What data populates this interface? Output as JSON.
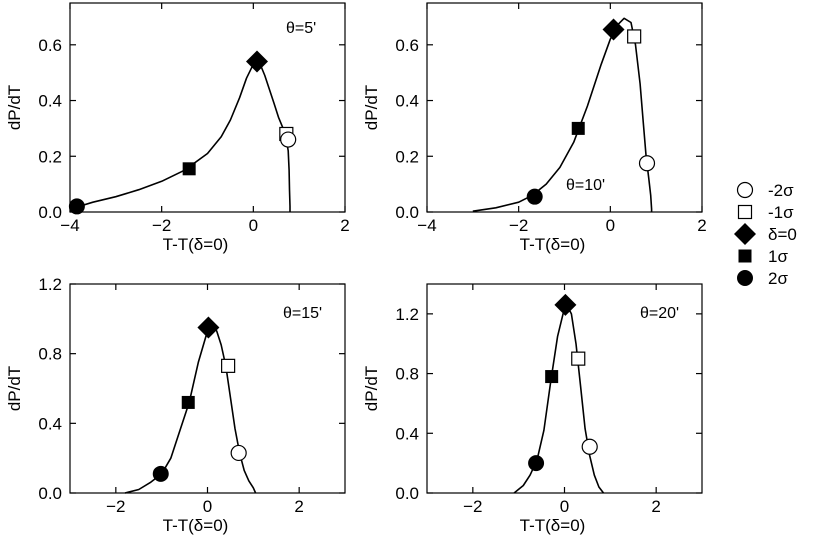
{
  "chart_data": [
    {
      "type": "line",
      "panel_label": "θ=5'",
      "xlabel": "T-T(δ=0)",
      "ylabel": "dP/dT",
      "xlim": [
        -4,
        2
      ],
      "ylim": [
        0,
        0.75
      ],
      "xticks": [
        -4,
        -2,
        0,
        2
      ],
      "yticks": [
        0.0,
        0.2,
        0.4,
        0.6
      ],
      "x_tick_labels": [
        "−4",
        "−2",
        "0",
        "2"
      ],
      "y_tick_labels": [
        "0.0",
        "0.2",
        "0.4",
        "0.6"
      ],
      "curve": {
        "x": [
          -4.0,
          -3.8,
          -3.5,
          -3.0,
          -2.5,
          -2.0,
          -1.5,
          -1.0,
          -0.7,
          -0.5,
          -0.3,
          -0.15,
          0.0,
          0.08,
          0.15,
          0.25,
          0.35,
          0.45,
          0.55,
          0.65,
          0.72,
          0.76,
          0.78,
          0.79,
          0.8,
          0.8
        ],
        "y": [
          0.008,
          0.02,
          0.035,
          0.055,
          0.08,
          0.11,
          0.15,
          0.21,
          0.27,
          0.33,
          0.41,
          0.48,
          0.53,
          0.54,
          0.53,
          0.49,
          0.44,
          0.39,
          0.34,
          0.3,
          0.26,
          0.22,
          0.15,
          0.08,
          0.02,
          0.0
        ]
      },
      "markers": [
        {
          "series": "2σ",
          "x": -3.85,
          "y": 0.02
        },
        {
          "series": "1σ",
          "x": -1.4,
          "y": 0.155
        },
        {
          "series": "δ=0",
          "x": 0.08,
          "y": 0.54
        },
        {
          "series": "-1σ",
          "x": 0.72,
          "y": 0.28
        },
        {
          "series": "-2σ",
          "x": 0.76,
          "y": 0.26
        }
      ]
    },
    {
      "type": "line",
      "panel_label": "θ=10'",
      "xlabel": "T-T(δ=0)",
      "ylabel": "dP/dT",
      "xlim": [
        -4,
        2
      ],
      "ylim": [
        0,
        0.75
      ],
      "xticks": [
        -4,
        -2,
        0,
        2
      ],
      "yticks": [
        0.0,
        0.2,
        0.4,
        0.6
      ],
      "x_tick_labels": [
        "−4",
        "−2",
        "0",
        "2"
      ],
      "y_tick_labels": [
        "0.0",
        "0.2",
        "0.4",
        "0.6"
      ],
      "curve": {
        "x": [
          -3.0,
          -2.5,
          -2.0,
          -1.7,
          -1.4,
          -1.1,
          -0.8,
          -0.5,
          -0.2,
          0.0,
          0.15,
          0.3,
          0.45,
          0.55,
          0.65,
          0.72,
          0.78,
          0.84,
          0.88,
          0.9,
          0.9
        ],
        "y": [
          0.003,
          0.015,
          0.035,
          0.06,
          0.1,
          0.16,
          0.25,
          0.38,
          0.53,
          0.62,
          0.67,
          0.695,
          0.68,
          0.6,
          0.46,
          0.32,
          0.2,
          0.12,
          0.06,
          0.01,
          0.0
        ]
      },
      "markers": [
        {
          "series": "2σ",
          "x": -1.65,
          "y": 0.055
        },
        {
          "series": "1σ",
          "x": -0.7,
          "y": 0.3
        },
        {
          "series": "δ=0",
          "x": 0.07,
          "y": 0.655
        },
        {
          "series": "-1σ",
          "x": 0.52,
          "y": 0.63
        },
        {
          "series": "-2σ",
          "x": 0.8,
          "y": 0.175
        }
      ]
    },
    {
      "type": "line",
      "panel_label": "θ=15'",
      "xlabel": "T-T(δ=0)",
      "ylabel": "dP/dT",
      "xlim": [
        -3,
        3
      ],
      "ylim": [
        0,
        1.2
      ],
      "xticks": [
        -2,
        0,
        2
      ],
      "yticks": [
        0.0,
        0.4,
        0.8,
        1.2
      ],
      "x_tick_labels": [
        "−2",
        "0",
        "2"
      ],
      "y_tick_labels": [
        "0.0",
        "0.4",
        "0.8",
        "1.2"
      ],
      "curve": {
        "x": [
          -1.8,
          -1.5,
          -1.25,
          -1.0,
          -0.8,
          -0.6,
          -0.4,
          -0.2,
          0.0,
          0.1,
          0.2,
          0.3,
          0.4,
          0.5,
          0.6,
          0.7,
          0.8,
          0.9,
          1.0,
          1.05
        ],
        "y": [
          0.0,
          0.02,
          0.06,
          0.11,
          0.2,
          0.36,
          0.52,
          0.75,
          0.93,
          0.96,
          0.93,
          0.85,
          0.73,
          0.55,
          0.37,
          0.23,
          0.13,
          0.07,
          0.03,
          0.0
        ]
      },
      "markers": [
        {
          "series": "2σ",
          "x": -1.02,
          "y": 0.11
        },
        {
          "series": "1σ",
          "x": -0.42,
          "y": 0.52
        },
        {
          "series": "δ=0",
          "x": 0.02,
          "y": 0.95
        },
        {
          "series": "-1σ",
          "x": 0.45,
          "y": 0.73
        },
        {
          "series": "-2σ",
          "x": 0.68,
          "y": 0.23
        }
      ]
    },
    {
      "type": "line",
      "panel_label": "θ=20'",
      "xlabel": "T-T(δ=0)",
      "ylabel": "dP/dT",
      "xlim": [
        -3,
        3
      ],
      "ylim": [
        0,
        1.4
      ],
      "xticks": [
        -2,
        0,
        2
      ],
      "yticks": [
        0.0,
        0.4,
        0.8,
        1.2
      ],
      "x_tick_labels": [
        "−2",
        "0",
        "2"
      ],
      "y_tick_labels": [
        "0.0",
        "0.4",
        "0.8",
        "1.2"
      ],
      "curve": {
        "x": [
          -1.1,
          -0.9,
          -0.75,
          -0.6,
          -0.45,
          -0.3,
          -0.15,
          0.0,
          0.05,
          0.15,
          0.25,
          0.35,
          0.45,
          0.55,
          0.65,
          0.75,
          0.85
        ],
        "y": [
          0.0,
          0.05,
          0.12,
          0.22,
          0.42,
          0.75,
          1.05,
          1.24,
          1.26,
          1.2,
          1.0,
          0.72,
          0.43,
          0.25,
          0.12,
          0.04,
          0.0
        ]
      },
      "markers": [
        {
          "series": "2σ",
          "x": -0.62,
          "y": 0.2
        },
        {
          "series": "1σ",
          "x": -0.28,
          "y": 0.78
        },
        {
          "series": "δ=0",
          "x": 0.02,
          "y": 1.26
        },
        {
          "series": "-1σ",
          "x": 0.3,
          "y": 0.9
        },
        {
          "series": "-2σ",
          "x": 0.55,
          "y": 0.31
        }
      ]
    }
  ],
  "legend": {
    "placement": "right",
    "items": [
      {
        "id": "-2σ",
        "label": "-2σ",
        "marker": "circle-open"
      },
      {
        "id": "-1σ",
        "label": "-1σ",
        "marker": "square-open"
      },
      {
        "id": "δ=0",
        "label": "δ=0",
        "marker": "diamond-filled"
      },
      {
        "id": "1σ",
        "label": "1σ",
        "marker": "square-filled"
      },
      {
        "id": "2σ",
        "label": "2σ",
        "marker": "circle-filled"
      }
    ]
  },
  "colors": {
    "ink": "#000000",
    "background": "#ffffff"
  }
}
